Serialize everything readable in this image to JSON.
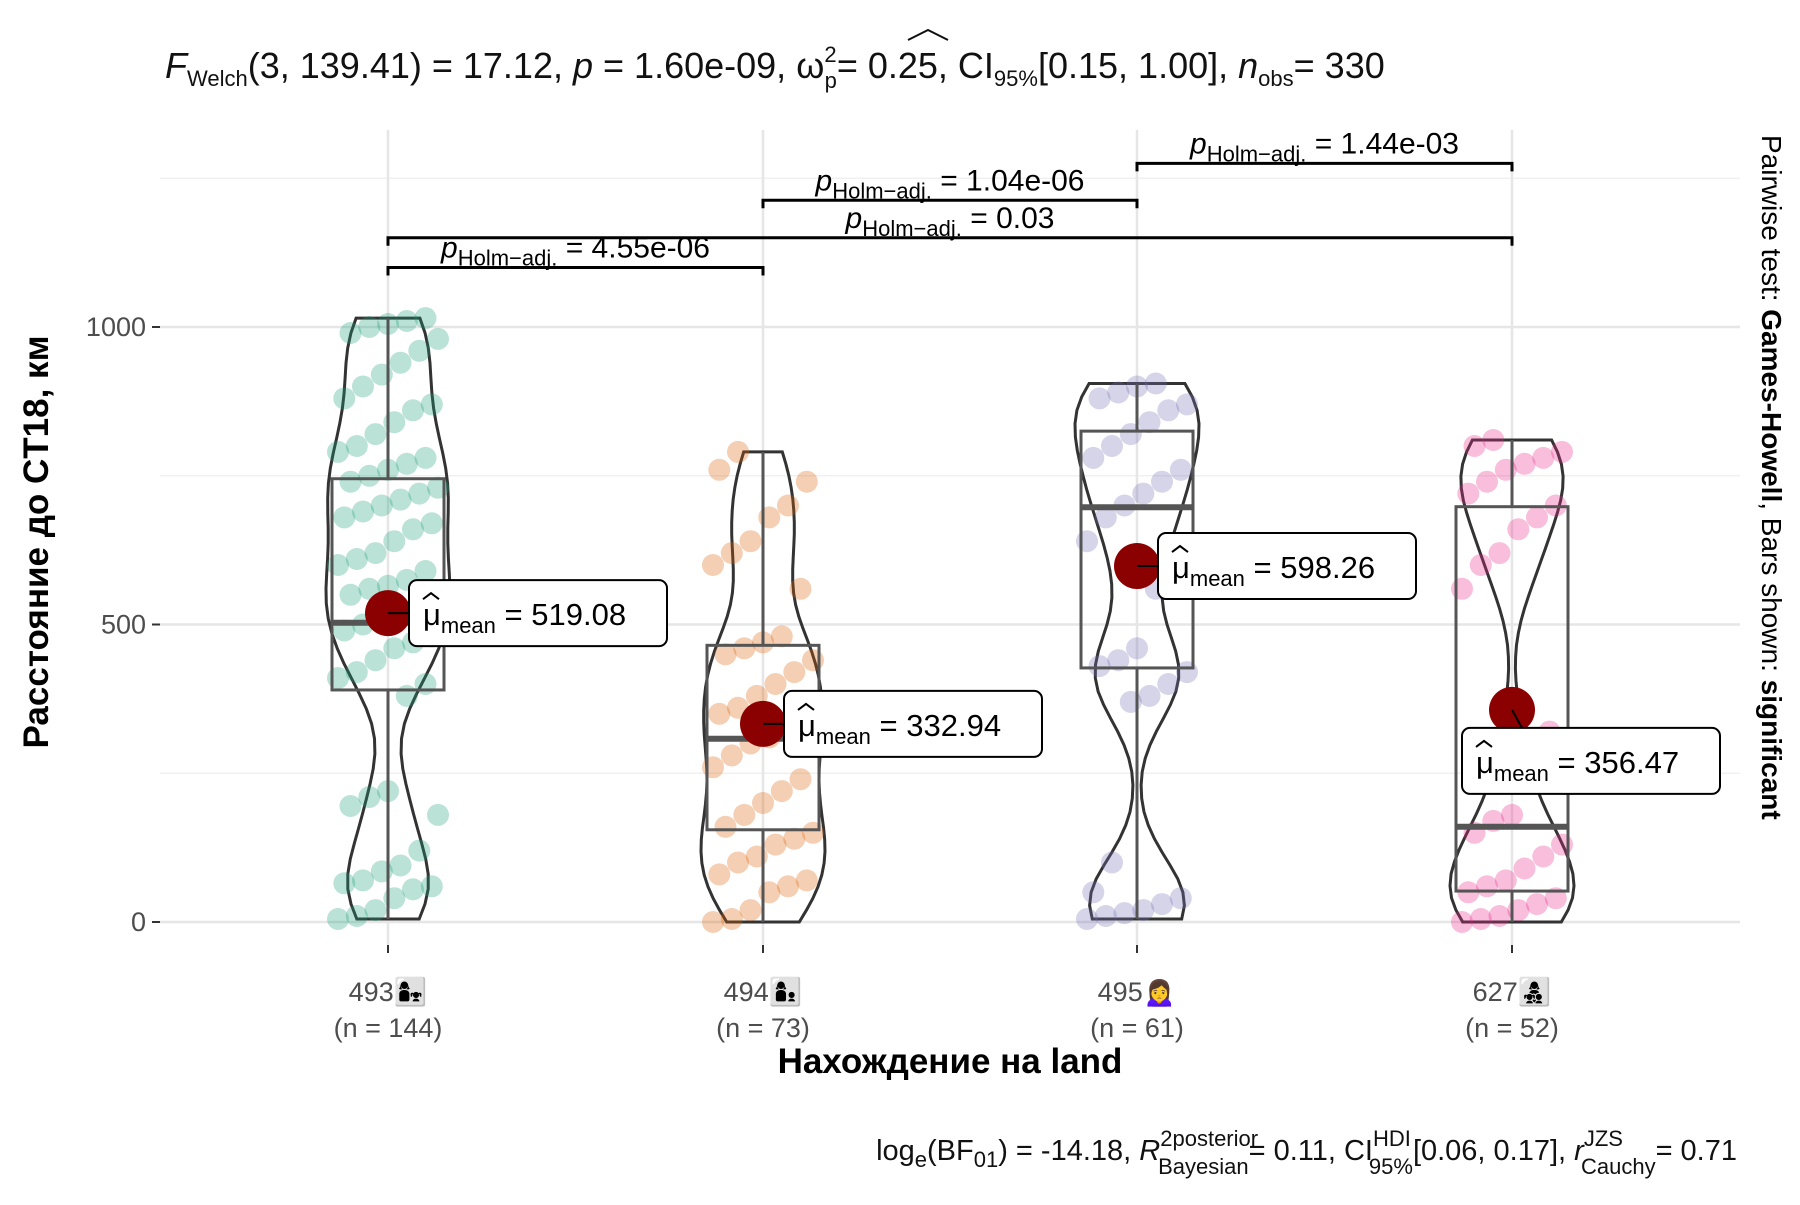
{
  "chart_data": {
    "type": "violin-box-scatter",
    "subtitle": {
      "prefix": "F",
      "prefix_sub": "Welch",
      "stat": "(3, 139.41) = 17.12,",
      "p_text": "p",
      "p_value": "= 1.60e-09,",
      "omega": "ω",
      "omega_sup": "2",
      "omega_sub": "p",
      "omega_value": "= 0.25, CI",
      "ci_sub": "95%",
      "ci_value": "[0.15, 1.00],",
      "n_text": "n",
      "n_sub": "obs",
      "n_value": "= 330"
    },
    "ylabel": "Расстояние до CT18, км",
    "xlabel": "Нахождение на land",
    "side_label": {
      "prefix": "Pairwise test: ",
      "method": "Games-Howell",
      "middle": ", Bars shown: ",
      "shown": "significant"
    },
    "caption": {
      "a": "log",
      "a_sub": "e",
      "b": "(BF",
      "b_sub": "01",
      "c": ") = -14.18,",
      "r2": "R",
      "r2_sup": "2",
      "r2_sup2": "posterior",
      "r2_sub": "Bayesian",
      "d": "= 0.11, CI",
      "d_sup": "HDI",
      "d_sub": "95%",
      "e": "[0.06, 0.17],",
      "f": "r",
      "f_sup": "JZS",
      "f_sub": "Cauchy",
      "g": "= 0.71"
    },
    "ylim": [
      -60,
      1290
    ],
    "y_ticks": [
      0,
      500,
      1000
    ],
    "groups": [
      {
        "name": "493",
        "emoji": "👩‍👧",
        "n_label": "(n = 144)",
        "color": "#1B9E77",
        "mean": 519.08,
        "mean_label": "= 519.08",
        "q1": 390,
        "median": 503,
        "q3": 745,
        "min": 5,
        "max": 1015
      },
      {
        "name": "494",
        "emoji": "👩‍👦",
        "n_label": "(n = 73)",
        "color": "#D95F02",
        "mean": 332.94,
        "mean_label": "= 332.94",
        "q1": 155,
        "median": 308,
        "q3": 465,
        "min": 0,
        "max": 790
      },
      {
        "name": "495",
        "emoji": "🙍‍♀️",
        "n_label": "(n = 61)",
        "color": "#7570B3",
        "mean": 598.26,
        "mean_label": "= 598.26",
        "q1": 427,
        "median": 697,
        "q3": 825,
        "min": 5,
        "max": 905
      },
      {
        "name": "627",
        "emoji": "👩‍👧‍👦",
        "n_label": "(n = 52)",
        "color": "#E7298A",
        "mean": 356.47,
        "mean_label": "= 356.47",
        "q1": 52,
        "median": 160,
        "q3": 698,
        "min": 0,
        "max": 810
      }
    ],
    "mean_label_prefix": "μ",
    "mean_label_sub": "mean",
    "pairwise": [
      {
        "from": 0,
        "to": 1,
        "level": 1100,
        "label": "= 4.55e-06",
        "p": "p",
        "p_sub": "Holm−adj."
      },
      {
        "from": 0,
        "to": 3,
        "level": 1150,
        "label": "= 0.03",
        "p": "p",
        "p_sub": "Holm−adj."
      },
      {
        "from": 1,
        "to": 2,
        "level": 1213,
        "label": "= 1.04e-06",
        "p": "p",
        "p_sub": "Holm−adj."
      },
      {
        "from": 2,
        "to": 3,
        "level": 1275,
        "label": "= 1.44e-03",
        "p": "p",
        "p_sub": "Holm−adj."
      }
    ],
    "points": {
      "493": [
        5,
        10,
        20,
        40,
        55,
        60,
        65,
        70,
        85,
        95,
        120,
        180,
        195,
        210,
        220,
        380,
        400,
        410,
        420,
        440,
        460,
        470,
        480,
        490,
        500,
        510,
        520,
        530,
        540,
        550,
        560,
        565,
        575,
        590,
        600,
        610,
        620,
        640,
        660,
        670,
        680,
        690,
        700,
        710,
        720,
        730,
        740,
        750,
        760,
        770,
        780,
        790,
        800,
        820,
        840,
        860,
        870,
        880,
        900,
        920,
        940,
        960,
        980,
        990,
        1000,
        1005,
        1010,
        1015
      ],
      "494": [
        0,
        5,
        20,
        50,
        60,
        70,
        80,
        100,
        110,
        130,
        140,
        150,
        160,
        180,
        200,
        220,
        240,
        260,
        280,
        300,
        310,
        320,
        340,
        350,
        360,
        380,
        400,
        420,
        440,
        450,
        460,
        470,
        480,
        560,
        600,
        620,
        640,
        680,
        700,
        740,
        760,
        790
      ],
      "495": [
        5,
        10,
        15,
        20,
        30,
        40,
        50,
        100,
        370,
        380,
        400,
        420,
        430,
        440,
        460,
        560,
        600,
        640,
        680,
        700,
        720,
        740,
        760,
        780,
        800,
        820,
        840,
        860,
        870,
        880,
        890,
        900,
        905
      ],
      "627": [
        0,
        5,
        10,
        20,
        30,
        40,
        50,
        60,
        70,
        90,
        110,
        130,
        150,
        170,
        180,
        260,
        320,
        560,
        600,
        620,
        660,
        680,
        700,
        720,
        740,
        760,
        770,
        780,
        790,
        800,
        810
      ]
    }
  }
}
